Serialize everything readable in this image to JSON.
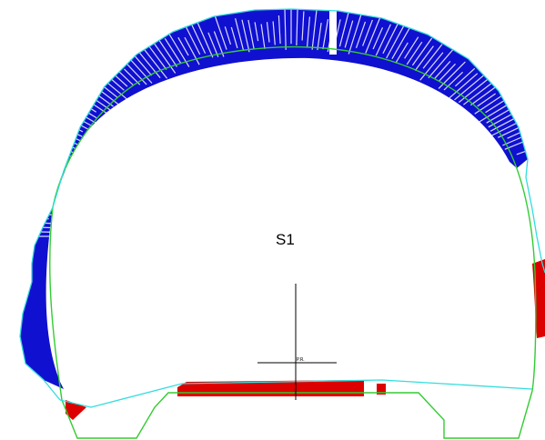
{
  "section": {
    "label": "S1",
    "point_label": "P.R."
  },
  "legend_colors": {
    "overbreak": "#0000cc",
    "underbreak": "#dd0000",
    "scan_profile": "#33dddd",
    "design_profile": "#33cc33",
    "axis": "#000000"
  }
}
